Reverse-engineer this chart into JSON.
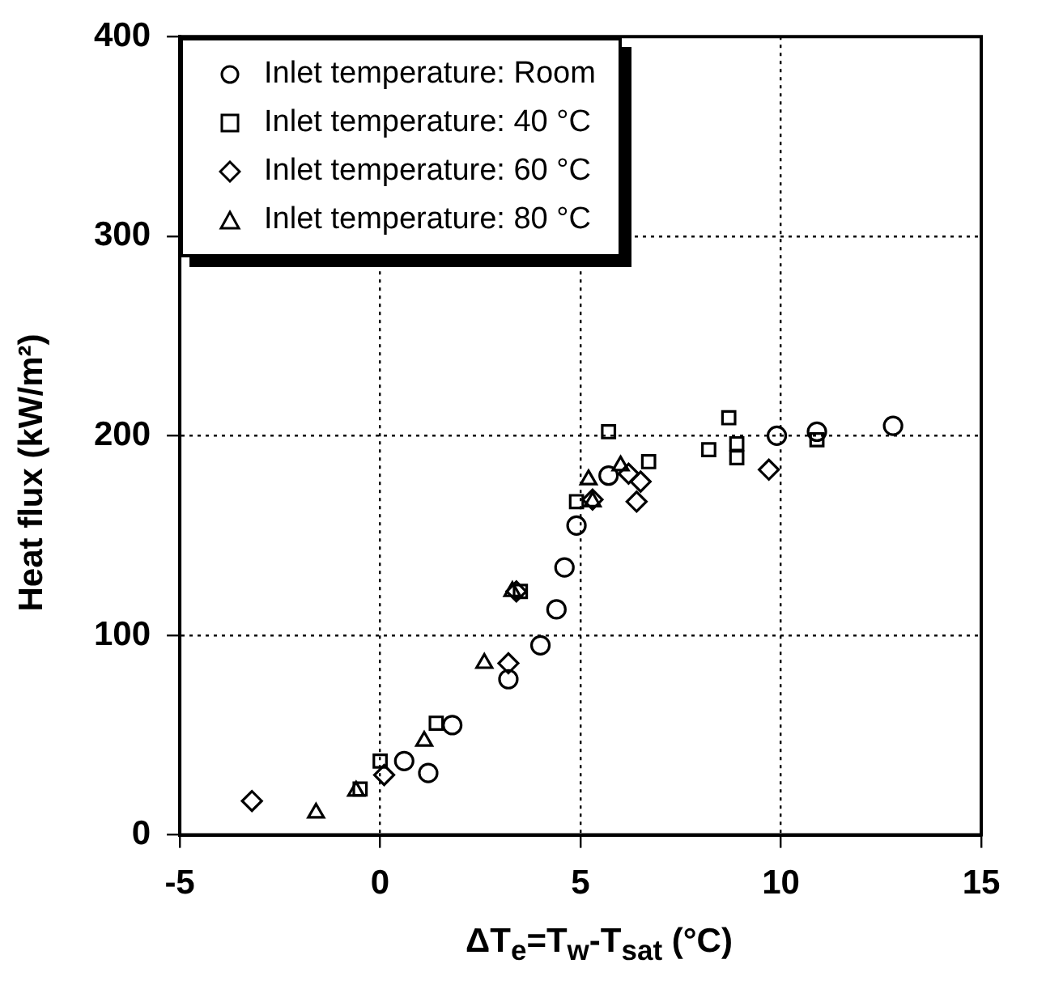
{
  "chart_data": {
    "type": "scatter",
    "xlabel": "ΔT$_{e}$=T$_{w}$-T$_{sat}$ (°C)",
    "ylabel": "Heat flux (kW/m²)",
    "xlim": [
      -5,
      15
    ],
    "xticks": [
      -5,
      0,
      5,
      10,
      15
    ],
    "ylim": [
      0,
      400
    ],
    "yticks": [
      0,
      100,
      200,
      300,
      400
    ],
    "grid": true,
    "legend": "top left",
    "series": [
      {
        "name": "Inlet temperature: Room",
        "color": "#000000",
        "marker": "circle",
        "x": [
          12.8,
          10.9,
          9.9,
          5.7,
          4.9,
          4.6,
          4.4,
          4.0,
          3.2,
          1.8,
          0.6,
          1.2
        ],
        "values": [
          205,
          202,
          200,
          180,
          155,
          134,
          113,
          95,
          78,
          55,
          37,
          31
        ]
      },
      {
        "name": "Inlet temperature: 40 °C",
        "color": "#000000",
        "marker": "square",
        "x": [
          8.7,
          5.7,
          6.7,
          8.2,
          8.9,
          8.9,
          10.9,
          4.9,
          1.4,
          0.0,
          -0.5,
          3.5
        ],
        "values": [
          209,
          202,
          187,
          193,
          196,
          189,
          198,
          167,
          56,
          37,
          23,
          122
        ]
      },
      {
        "name": "Inlet temperature: 60 °C",
        "color": "#000000",
        "marker": "diamond",
        "x": [
          -3.2,
          0.1,
          3.2,
          3.4,
          5.3,
          6.2,
          6.5,
          6.4,
          9.7
        ],
        "values": [
          17,
          30,
          86,
          122,
          168,
          181,
          177,
          167,
          183
        ]
      },
      {
        "name": "Inlet temperature: 80 °C",
        "color": "#000000",
        "marker": "triangle",
        "x": [
          -1.6,
          -0.6,
          1.1,
          2.6,
          3.3,
          5.2,
          6.0,
          5.3
        ],
        "values": [
          11,
          22,
          47,
          86,
          122,
          178,
          185,
          167
        ]
      }
    ]
  }
}
